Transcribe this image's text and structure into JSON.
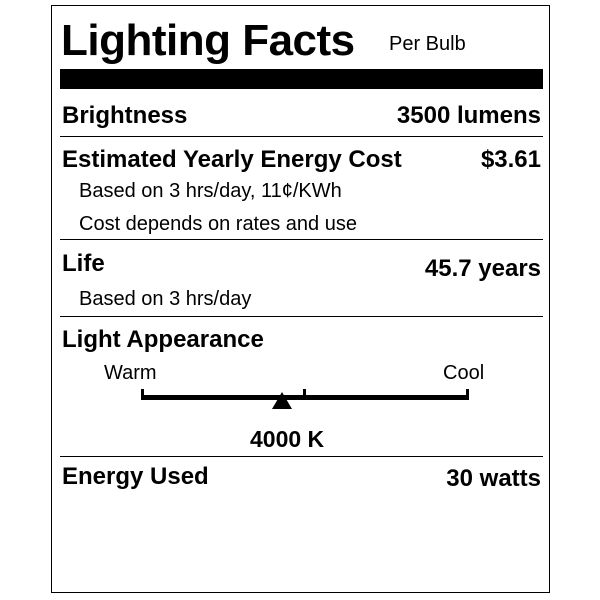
{
  "header": {
    "title": "Lighting Facts",
    "subtitle": "Per Bulb"
  },
  "brightness": {
    "label": "Brightness",
    "value": "3500 lumens"
  },
  "energy_cost": {
    "label": "Estimated Yearly Energy Cost",
    "value": "$3.61",
    "note1": "Based on 3 hrs/day, 11¢/KWh",
    "note2": "Cost depends on rates and use"
  },
  "life": {
    "label": "Life",
    "value": "45.7 years",
    "note": "Based on 3 hrs/day"
  },
  "appearance": {
    "label": "Light Appearance",
    "warm": "Warm",
    "cool": "Cool",
    "value": "4000 K",
    "marker_fraction": 0.43
  },
  "energy_used": {
    "label": "Energy Used",
    "value": "30 watts"
  }
}
